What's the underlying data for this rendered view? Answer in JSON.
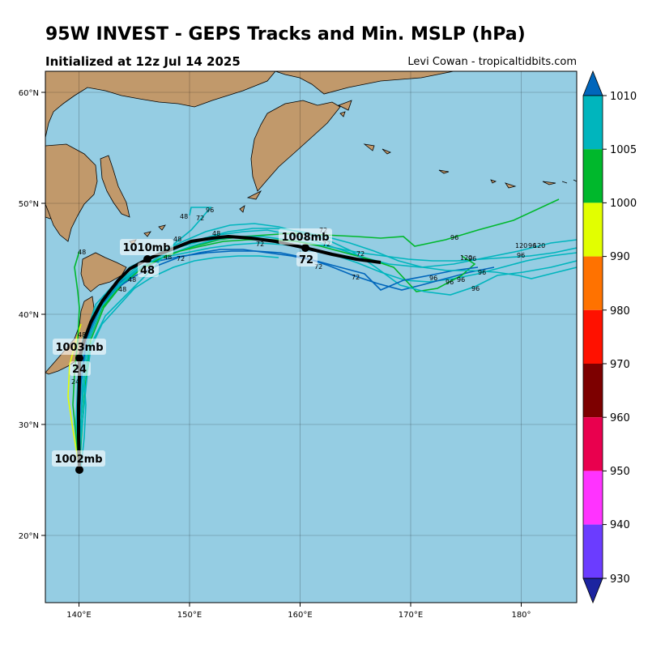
{
  "header": {
    "title": "95W INVEST - GEPS Tracks and Min. MSLP (hPa)",
    "subtitle": "Initialized at 12z Jul 14 2025",
    "credit": "Levi Cowan - tropicaltidbits.com"
  },
  "map": {
    "ocean_color": "#95cde3",
    "land_color": "#c1996b",
    "lon_ticks": [
      "140°E",
      "150°E",
      "160°E",
      "170°E",
      "180°"
    ],
    "lat_ticks": [
      "60°N",
      "50°N",
      "40°N",
      "30°N",
      "20°N"
    ]
  },
  "colorbar": {
    "ticks": [
      "1010",
      "1005",
      "1000",
      "990",
      "980",
      "970",
      "960",
      "950",
      "940",
      "930"
    ],
    "colors": [
      "#00b5bd",
      "#00b82c",
      "#e2ff00",
      "#ff7200",
      "#ff1100",
      "#7d0000",
      "#e9004e",
      "#ff33ff",
      "#6b3cff"
    ],
    "top_arrow": "#0066bb",
    "bottom_arrow": "#1c24a0"
  },
  "mean_track": {
    "labels": [
      {
        "text": "1002mb",
        "kind": "pressure"
      },
      {
        "text": "24",
        "kind": "hour"
      },
      {
        "text": "1003mb",
        "kind": "pressure"
      },
      {
        "text": "48",
        "kind": "hour"
      },
      {
        "text": "1010mb",
        "kind": "pressure"
      },
      {
        "text": "72",
        "kind": "hour"
      },
      {
        "text": "1008mb",
        "kind": "pressure"
      }
    ]
  },
  "member_hour_labels": [
    "24",
    "48",
    "72",
    "96",
    "120"
  ]
}
